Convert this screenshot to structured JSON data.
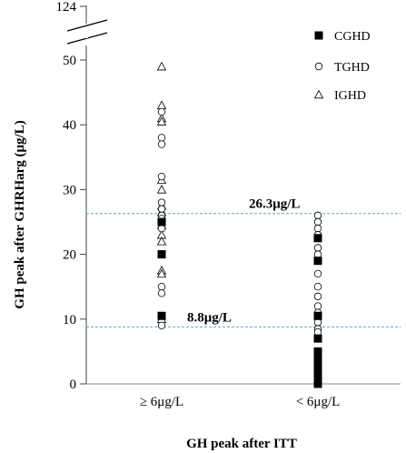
{
  "chart_data": {
    "type": "scatter",
    "ylabel": "GH peak after GHRHarg (μg/L)",
    "xlabel": "GH peak after ITT",
    "categories": [
      "≥ 6μg/L",
      "< 6μg/L"
    ],
    "y_ticks": [
      0,
      10,
      20,
      30,
      40,
      50
    ],
    "y_break_tick": 124,
    "ylim": [
      0,
      52
    ],
    "reference_lines": [
      {
        "value": 26.3,
        "label": "26.3μg/L"
      },
      {
        "value": 8.8,
        "label": "8.8μg/L"
      }
    ],
    "legend_position": "top-right",
    "series": [
      {
        "name": "CGHD",
        "marker": "filled-square",
        "points": [
          {
            "category": 0,
            "y": 25.0
          },
          {
            "category": 0,
            "y": 20.0
          },
          {
            "category": 0,
            "y": 10.5
          },
          {
            "category": 1,
            "y": 22.5
          },
          {
            "category": 1,
            "y": 19.0
          },
          {
            "category": 1,
            "y": 10.5
          },
          {
            "category": 1,
            "y": 7.0
          },
          {
            "category": 1,
            "y": 5.0
          },
          {
            "category": 1,
            "y": 4.5
          },
          {
            "category": 1,
            "y": 4.0
          },
          {
            "category": 1,
            "y": 3.5
          },
          {
            "category": 1,
            "y": 3.0
          },
          {
            "category": 1,
            "y": 2.5
          },
          {
            "category": 1,
            "y": 2.0
          },
          {
            "category": 1,
            "y": 1.5
          },
          {
            "category": 1,
            "y": 1.0
          },
          {
            "category": 1,
            "y": 0.5
          },
          {
            "category": 1,
            "y": 0.0
          }
        ]
      },
      {
        "name": "TGHD",
        "marker": "open-circle",
        "points": [
          {
            "category": 0,
            "y": 42.0
          },
          {
            "category": 0,
            "y": 38.0
          },
          {
            "category": 0,
            "y": 37.0
          },
          {
            "category": 0,
            "y": 32.0
          },
          {
            "category": 0,
            "y": 28.0
          },
          {
            "category": 0,
            "y": 27.0
          },
          {
            "category": 0,
            "y": 26.0
          },
          {
            "category": 0,
            "y": 25.5
          },
          {
            "category": 0,
            "y": 24.0
          },
          {
            "category": 0,
            "y": 15.0
          },
          {
            "category": 0,
            "y": 14.0
          },
          {
            "category": 0,
            "y": 9.0
          },
          {
            "category": 1,
            "y": 26.0
          },
          {
            "category": 1,
            "y": 25.0
          },
          {
            "category": 1,
            "y": 24.0
          },
          {
            "category": 1,
            "y": 23.0
          },
          {
            "category": 1,
            "y": 21.0
          },
          {
            "category": 1,
            "y": 20.0
          },
          {
            "category": 1,
            "y": 17.0
          },
          {
            "category": 1,
            "y": 15.0
          },
          {
            "category": 1,
            "y": 13.5
          },
          {
            "category": 1,
            "y": 12.0
          },
          {
            "category": 1,
            "y": 11.0
          },
          {
            "category": 1,
            "y": 9.5
          },
          {
            "category": 1,
            "y": 8.5
          },
          {
            "category": 1,
            "y": 8.0
          }
        ]
      },
      {
        "name": "IGHD",
        "marker": "open-triangle",
        "points": [
          {
            "category": 0,
            "y": 49.0
          },
          {
            "category": 0,
            "y": 43.0
          },
          {
            "category": 0,
            "y": 41.0
          },
          {
            "category": 0,
            "y": 40.5
          },
          {
            "category": 0,
            "y": 31.5
          },
          {
            "category": 0,
            "y": 30.0
          },
          {
            "category": 0,
            "y": 27.5
          },
          {
            "category": 0,
            "y": 26.5
          },
          {
            "category": 0,
            "y": 24.5
          },
          {
            "category": 0,
            "y": 23.0
          },
          {
            "category": 0,
            "y": 22.0
          },
          {
            "category": 0,
            "y": 17.5
          },
          {
            "category": 0,
            "y": 17.0
          },
          {
            "category": 0,
            "y": 10.0
          }
        ]
      }
    ]
  }
}
